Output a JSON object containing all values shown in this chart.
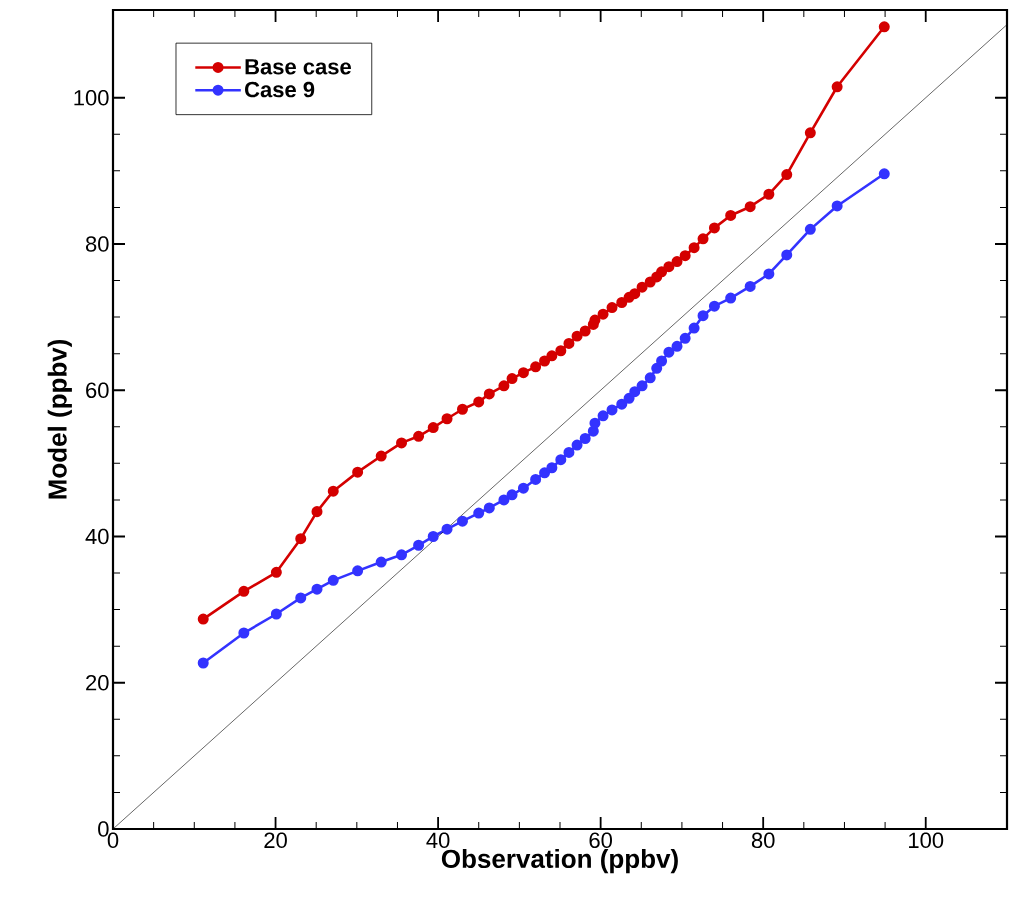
{
  "chart_data": {
    "type": "line",
    "xlabel": "Observation (ppbv)",
    "ylabel": "Model (ppbv)",
    "x": [
      11.1,
      16.1,
      20.1,
      23.1,
      25.1,
      27.1,
      30.1,
      33.0,
      35.5,
      37.6,
      39.4,
      41.1,
      43.0,
      45.0,
      46.3,
      48.1,
      49.1,
      50.5,
      52.0,
      53.1,
      54.0,
      55.1,
      56.1,
      57.1,
      58.1,
      59.1,
      59.3,
      60.3,
      61.4,
      62.6,
      63.5,
      64.2,
      65.1,
      66.1,
      66.9,
      67.5,
      68.4,
      69.4,
      70.4,
      71.5,
      72.6,
      74.0,
      76.0,
      78.4,
      80.7,
      82.9,
      85.8,
      89.1,
      94.9
    ],
    "series": [
      {
        "name": "Base case",
        "color": "#d40000",
        "values": [
          28.7,
          32.5,
          35.1,
          39.7,
          43.4,
          46.2,
          48.8,
          51.0,
          52.8,
          53.7,
          54.9,
          56.1,
          57.4,
          58.4,
          59.5,
          60.6,
          61.6,
          62.4,
          63.2,
          64.0,
          64.7,
          65.4,
          66.4,
          67.4,
          68.1,
          69.0,
          69.6,
          70.4,
          71.3,
          72.0,
          72.7,
          73.2,
          74.1,
          74.8,
          75.5,
          76.2,
          76.9,
          77.6,
          78.4,
          79.5,
          80.7,
          82.2,
          83.9,
          85.1,
          86.8,
          89.5,
          95.2,
          101.5,
          109.7
        ]
      },
      {
        "name": "Case 9",
        "color": "#3333ff",
        "values": [
          22.7,
          26.8,
          29.4,
          31.6,
          32.8,
          34.0,
          35.3,
          36.5,
          37.5,
          38.8,
          40.0,
          41.0,
          42.1,
          43.2,
          43.9,
          45.0,
          45.7,
          46.6,
          47.8,
          48.7,
          49.4,
          50.5,
          51.5,
          52.5,
          53.4,
          54.4,
          55.5,
          56.5,
          57.3,
          58.1,
          58.9,
          59.8,
          60.6,
          61.7,
          63.0,
          64.0,
          65.2,
          66.0,
          67.1,
          68.5,
          70.2,
          71.5,
          72.6,
          74.2,
          75.9,
          78.5,
          82.0,
          85.2,
          89.6
        ]
      },
      {
        "type": "line",
        "color": "#000000",
        "marker": "none",
        "x": [
          0,
          110
        ],
        "values": [
          0,
          110
        ]
      }
    ],
    "xlim": [
      0,
      110
    ],
    "ylim": [
      0,
      112
    ],
    "xticks": [
      0,
      20,
      40,
      60,
      80,
      100
    ],
    "yticks": [
      0,
      20,
      40,
      60,
      80,
      100
    ],
    "marker": "circle",
    "line_style": "solid",
    "grid": false,
    "legend": "top left"
  }
}
